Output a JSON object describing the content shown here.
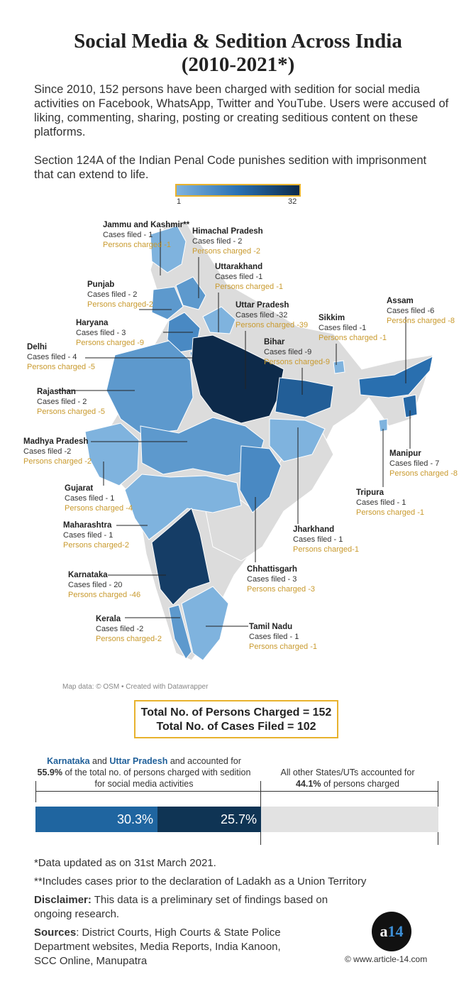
{
  "header": {
    "title_line1": "Social Media & Sedition Across India",
    "title_line2": "(2010-2021*)",
    "intro_p1": "Since 2010, 152 persons have been charged with sedition for social media activities on Facebook, WhatsApp, Twitter and YouTube. Users were accused of liking, commenting, sharing, posting or creating seditious content on these platforms.",
    "intro_p2": "Section 124A of the Indian Penal Code punishes sedition with imprisonment that can extend to life."
  },
  "legend": {
    "min": "1",
    "max": "32",
    "color_low": "#7fb3de",
    "color_high": "#0d2a4a"
  },
  "map": {
    "attribution": "Map data: © OSM • Created with Datawrapper",
    "no_data_color": "#dcdcdc",
    "states": [
      {
        "key": "jk",
        "name": "Jammu and Kashmir**",
        "cases": "Cases filed - 1",
        "persons": "Persons charged -1",
        "value": 1
      },
      {
        "key": "hp",
        "name": "Himachal Pradesh",
        "cases": "Cases filed - 2",
        "persons": "Persons charged -2",
        "value": 2
      },
      {
        "key": "uk",
        "name": "Uttarakhand",
        "cases": "Cases filed -1",
        "persons": "Persons charged -1",
        "value": 1
      },
      {
        "key": "pb",
        "name": "Punjab",
        "cases": "Cases filed - 2",
        "persons": "Persons charged-2",
        "value": 2
      },
      {
        "key": "up",
        "name": "Uttar Pradesh",
        "cases": "Cases filed -32",
        "persons": "Persons charged -39",
        "value": 32
      },
      {
        "key": "sk",
        "name": "Sikkim",
        "cases": "Cases filed -1",
        "persons": "Persons charged -1",
        "value": 1
      },
      {
        "key": "as",
        "name": "Assam",
        "cases": "Cases filed -6",
        "persons": "Persons charged -8",
        "value": 6
      },
      {
        "key": "hr",
        "name": "Haryana",
        "cases": "Cases filed - 3",
        "persons": "Persons charged -9",
        "value": 3
      },
      {
        "key": "dl",
        "name": "Delhi",
        "cases": "Cases filed - 4",
        "persons": "Persons charged -5",
        "value": 4
      },
      {
        "key": "br",
        "name": "Bihar",
        "cases": "Cases filed -9",
        "persons": "Persons charged-9",
        "value": 9
      },
      {
        "key": "rj",
        "name": "Rajasthan",
        "cases": "Cases filed - 2",
        "persons": "Persons charged -5",
        "value": 2
      },
      {
        "key": "mp",
        "name": "Madhya Pradesh",
        "cases": "Cases filed -2",
        "persons": "Persons charged -2",
        "value": 2
      },
      {
        "key": "mn",
        "name": "Manipur",
        "cases": "Cases filed - 7",
        "persons": "Persons charged -8",
        "value": 7
      },
      {
        "key": "gj",
        "name": "Gujarat",
        "cases": "Cases filed - 1",
        "persons": "Persons charged -4",
        "value": 1
      },
      {
        "key": "tr",
        "name": "Tripura",
        "cases": "Cases filed - 1",
        "persons": "Persons charged -1",
        "value": 1
      },
      {
        "key": "mh",
        "name": "Maharashtra",
        "cases": "Cases filed - 1",
        "persons": "Persons charged-2",
        "value": 1
      },
      {
        "key": "jh",
        "name": "Jharkhand",
        "cases": "Cases filed - 1",
        "persons": "Persons charged-1",
        "value": 1
      },
      {
        "key": "cg",
        "name": "Chhattisgarh",
        "cases": "Cases filed - 3",
        "persons": "Persons charged -3",
        "value": 3
      },
      {
        "key": "ka",
        "name": "Karnataka",
        "cases": "Cases filed - 20",
        "persons": "Persons charged -46",
        "value": 20
      },
      {
        "key": "kl",
        "name": "Kerala",
        "cases": "Cases filed -2",
        "persons": "Persons charged-2",
        "value": 2
      },
      {
        "key": "tn",
        "name": "Tamil Nadu",
        "cases": "Cases filed - 1",
        "persons": "Persons charged -1",
        "value": 1
      }
    ]
  },
  "totals": {
    "line1": "Total No. of Persons Charged = 152",
    "line2": "Total No. of Cases Filed = 102"
  },
  "comparison": {
    "left_state1": "Karnataka",
    "left_and1": " and ",
    "left_state2": "Uttar Pradesh",
    "left_text1": " and  accounted for",
    "left_pct": "55.9%",
    "left_text2": " of the total no. of persons charged with sedition for social media activities",
    "right_text1": "All other States/UTs accounted for ",
    "right_pct": "44.1%",
    "right_text2": " of persons charged",
    "bar": [
      {
        "label": "30.3%",
        "value": 30.3,
        "color": "#1f65a0"
      },
      {
        "label": "25.7%",
        "value": 25.7,
        "color": "#0f3454"
      },
      {
        "label": "",
        "value": 44.1,
        "color": "#e2e2e2"
      }
    ]
  },
  "footer": {
    "note1": "*Data updated as on 31st March 2021.",
    "note2": "**Includes cases prior to the declaration of Ladakh as a Union Territory",
    "disclaimer_label": "Disclaimer:",
    "disclaimer_text": "  This data is a preliminary set of findings based on ongoing research.",
    "sources_label": "Sources",
    "sources_text": ": District Courts, High Courts & State Police Department websites, Media Reports, India Kanoon, SCC Online, Manupatra",
    "logo_a": "a",
    "logo_num": "14",
    "copyright": "© www.article-14.com"
  }
}
